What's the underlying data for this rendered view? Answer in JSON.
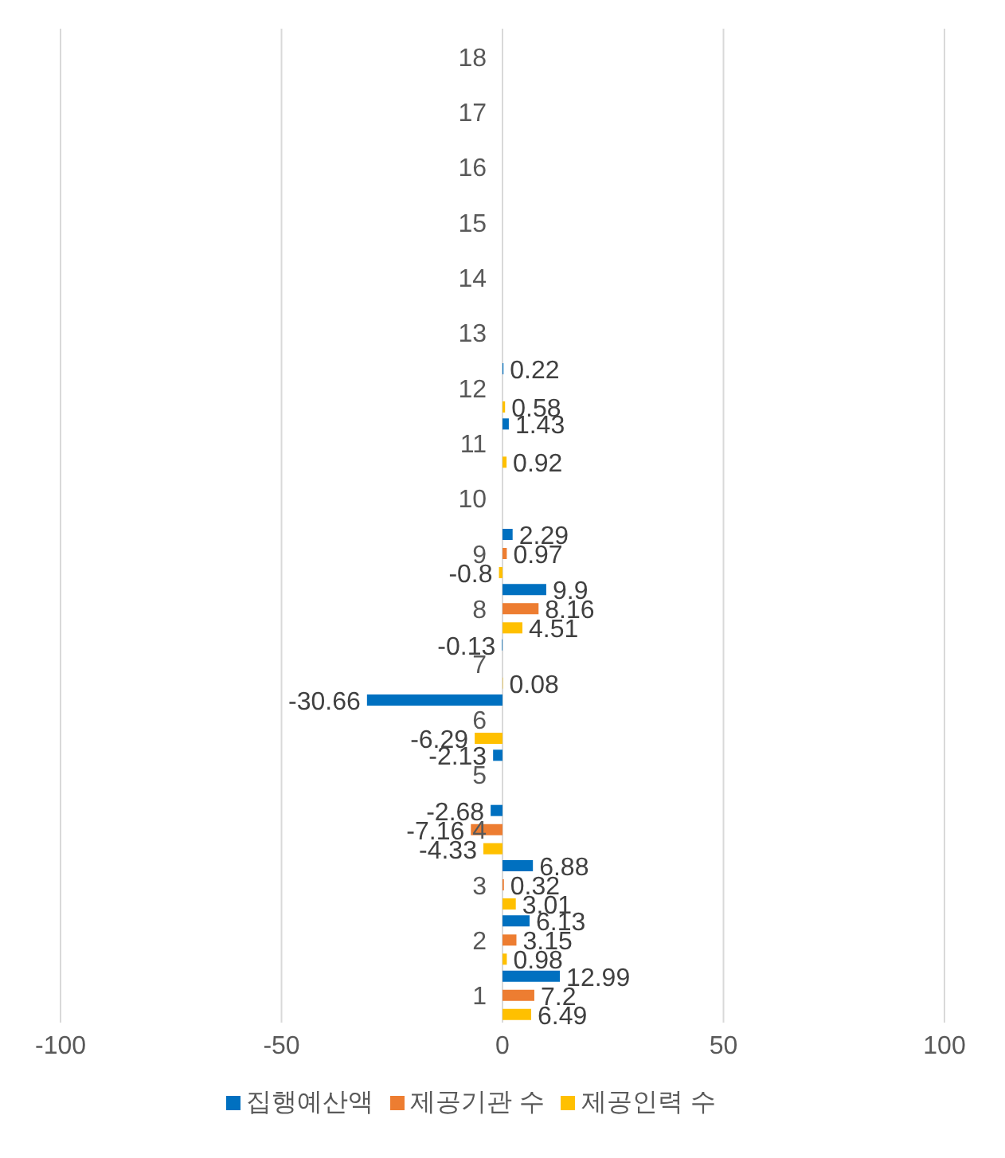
{
  "chart_data": {
    "type": "bar",
    "orientation": "horizontal",
    "categories": [
      "18",
      "17",
      "16",
      "15",
      "14",
      "13",
      "12",
      "11",
      "10",
      "9",
      "8",
      "7",
      "6",
      "5",
      "4",
      "3",
      "2",
      "1"
    ],
    "series": [
      {
        "name": "집행예산액",
        "color": "#0070c0",
        "values": [
          null,
          null,
          null,
          null,
          null,
          null,
          0.22,
          1.43,
          null,
          2.29,
          9.9,
          -0.13,
          -30.66,
          -2.13,
          -2.68,
          6.88,
          6.13,
          12.99
        ]
      },
      {
        "name": "제공기관 수",
        "color": "#ed7d31",
        "values": [
          null,
          null,
          null,
          null,
          null,
          null,
          null,
          null,
          null,
          0.97,
          8.16,
          null,
          null,
          null,
          -7.16,
          0.32,
          3.15,
          7.2
        ]
      },
      {
        "name": "제공인력 수",
        "color": "#ffc000",
        "values": [
          null,
          null,
          null,
          null,
          null,
          null,
          0.58,
          0.92,
          null,
          -0.8,
          4.51,
          0.08,
          -6.29,
          null,
          -4.33,
          3.01,
          0.98,
          6.49
        ]
      }
    ],
    "xlim": [
      -100,
      100
    ],
    "xticks": [
      -100,
      -50,
      0,
      50,
      100
    ],
    "grid": "x",
    "legend": "bottom",
    "data_labels": true
  }
}
